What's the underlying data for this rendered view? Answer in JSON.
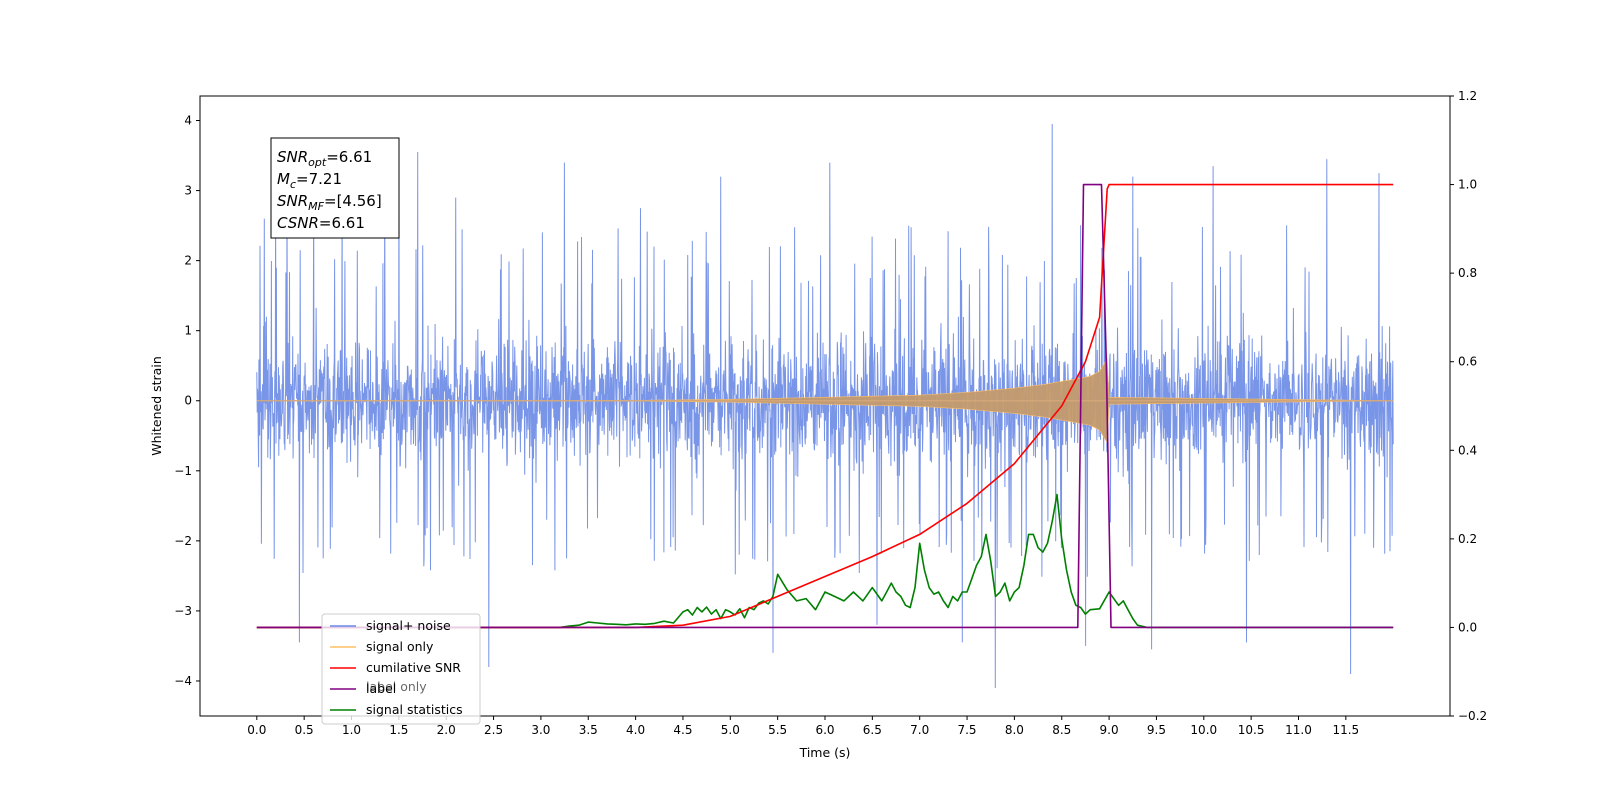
{
  "chart_data": {
    "type": "line",
    "xlabel": "Time (s)",
    "ylabel": "Whitened strain",
    "xlim": [
      -0.6,
      12.6
    ],
    "ylim": [
      -4.5,
      4.35
    ],
    "y2lim": [
      -0.2,
      1.2
    ],
    "x_ticks": [
      0.0,
      0.5,
      1.0,
      1.5,
      2.0,
      2.5,
      3.0,
      3.5,
      4.0,
      4.5,
      5.0,
      5.5,
      6.0,
      6.5,
      7.0,
      7.5,
      8.0,
      8.5,
      9.0,
      9.5,
      10.0,
      10.5,
      11.0,
      11.5
    ],
    "x_tick_labels": [
      "0.0",
      "0.5",
      "1.0",
      "1.5",
      "2.0",
      "2.5",
      "3.0",
      "3.5",
      "4.0",
      "4.5",
      "5.0",
      "5.5",
      "6.0",
      "6.5",
      "7.0",
      "7.5",
      "8.0",
      "8.5",
      "9.0",
      "9.5",
      "10.0",
      "10.5",
      "11.0",
      "11.5"
    ],
    "y_ticks": [
      -4,
      -3,
      -2,
      -1,
      0,
      1,
      2,
      3,
      4
    ],
    "y_tick_labels": [
      "−4",
      "−3",
      "−2",
      "−1",
      "0",
      "1",
      "2",
      "3",
      "4"
    ],
    "y2_ticks": [
      -0.2,
      0.0,
      0.2,
      0.4,
      0.6,
      0.8,
      1.0,
      1.2
    ],
    "y2_tick_labels": [
      "−0.2",
      "0.0",
      "0.2",
      "0.4",
      "0.6",
      "0.8",
      "1.0",
      "1.2"
    ],
    "legend_position": "lower-left",
    "legend": [
      {
        "name": "signal+ noise",
        "color": "#6a8ae6"
      },
      {
        "name": "signal only",
        "color": "#ffbf66"
      },
      {
        "name": "cumilative SNR",
        "color": "#ff0000"
      },
      {
        "name": "label",
        "color": "#800080"
      },
      {
        "name": "signal statistics",
        "color": "#008000"
      }
    ],
    "hidden_legend_text": "label only",
    "series": [
      {
        "name": "cumilative SNR",
        "axis": "right",
        "color": "#ff0000",
        "x": [
          0.0,
          4.0,
          4.5,
          5.0,
          5.5,
          6.0,
          6.5,
          7.0,
          7.5,
          8.0,
          8.5,
          8.75,
          8.9,
          8.98,
          9.0,
          12.0
        ],
        "y": [
          0.0,
          0.0,
          0.005,
          0.025,
          0.07,
          0.115,
          0.16,
          0.21,
          0.28,
          0.37,
          0.5,
          0.6,
          0.7,
          0.99,
          1.0,
          1.0
        ]
      },
      {
        "name": "label",
        "axis": "right",
        "color": "#800080",
        "x": [
          0.0,
          8.67,
          8.73,
          8.92,
          8.97,
          9.02,
          12.0
        ],
        "y": [
          0.0,
          0.0,
          1.0,
          1.0,
          0.6,
          0.0,
          0.0
        ]
      },
      {
        "name": "signal statistics",
        "axis": "right",
        "color": "#008000",
        "x": [
          0.0,
          3.2,
          3.3,
          3.4,
          3.5,
          3.6,
          3.7,
          3.8,
          3.9,
          4.0,
          4.1,
          4.2,
          4.3,
          4.4,
          4.5,
          4.55,
          4.6,
          4.65,
          4.7,
          4.75,
          4.8,
          4.85,
          4.9,
          4.95,
          5.0,
          5.05,
          5.1,
          5.15,
          5.2,
          5.25,
          5.3,
          5.35,
          5.4,
          5.45,
          5.5,
          5.6,
          5.7,
          5.8,
          5.9,
          6.0,
          6.1,
          6.2,
          6.3,
          6.4,
          6.5,
          6.6,
          6.65,
          6.7,
          6.75,
          6.8,
          6.85,
          6.9,
          6.95,
          7.0,
          7.05,
          7.1,
          7.15,
          7.2,
          7.25,
          7.3,
          7.35,
          7.4,
          7.45,
          7.5,
          7.55,
          7.6,
          7.65,
          7.7,
          7.75,
          7.8,
          7.85,
          7.9,
          7.95,
          8.0,
          8.05,
          8.1,
          8.15,
          8.2,
          8.25,
          8.3,
          8.35,
          8.4,
          8.45,
          8.5,
          8.55,
          8.6,
          8.65,
          8.7,
          8.75,
          8.8,
          8.9,
          9.0,
          9.05,
          9.1,
          9.15,
          9.2,
          9.25,
          9.3,
          9.4,
          9.6,
          12.0
        ],
        "y": [
          0.0,
          0.0,
          0.003,
          0.005,
          0.012,
          0.01,
          0.008,
          0.007,
          0.006,
          0.008,
          0.007,
          0.009,
          0.014,
          0.01,
          0.035,
          0.04,
          0.028,
          0.045,
          0.035,
          0.046,
          0.03,
          0.04,
          0.02,
          0.04,
          0.035,
          0.028,
          0.042,
          0.022,
          0.045,
          0.04,
          0.055,
          0.06,
          0.053,
          0.07,
          0.12,
          0.085,
          0.06,
          0.065,
          0.04,
          0.08,
          0.07,
          0.06,
          0.08,
          0.06,
          0.09,
          0.06,
          0.08,
          0.1,
          0.08,
          0.07,
          0.05,
          0.045,
          0.09,
          0.19,
          0.13,
          0.09,
          0.075,
          0.08,
          0.06,
          0.045,
          0.07,
          0.06,
          0.08,
          0.08,
          0.11,
          0.14,
          0.16,
          0.21,
          0.15,
          0.07,
          0.08,
          0.1,
          0.06,
          0.08,
          0.09,
          0.14,
          0.21,
          0.21,
          0.18,
          0.17,
          0.19,
          0.24,
          0.3,
          0.2,
          0.13,
          0.08,
          0.05,
          0.045,
          0.03,
          0.04,
          0.042,
          0.08,
          0.065,
          0.05,
          0.06,
          0.04,
          0.02,
          0.005,
          0.0,
          0.0,
          0.0
        ]
      },
      {
        "name": "signal only",
        "axis": "left",
        "color": "#ffbf66",
        "envelope_x": [
          0.0,
          4.0,
          5.0,
          6.0,
          7.0,
          7.5,
          8.0,
          8.3,
          8.6,
          8.8,
          8.9,
          8.98,
          9.0,
          12.0
        ],
        "envelope_y": [
          0.0,
          0.005,
          0.02,
          0.05,
          0.08,
          0.12,
          0.18,
          0.23,
          0.3,
          0.35,
          0.42,
          0.6,
          0.05,
          0.0
        ]
      },
      {
        "name": "signal+ noise",
        "axis": "left",
        "color": "#6a8ae6",
        "typical_range": [
          -1.9,
          1.9
        ],
        "x_start": 0.0,
        "x_end": 12.0,
        "spike_peaks": [
          {
            "x": 0.02,
            "y": -0.95
          },
          {
            "x": 0.08,
            "y": 2.6
          },
          {
            "x": 0.1,
            "y": 1.2
          },
          {
            "x": 0.2,
            "y": 2.9
          },
          {
            "x": 0.32,
            "y": 3.1
          },
          {
            "x": 0.45,
            "y": -3.45
          },
          {
            "x": 0.6,
            "y": 3.0
          },
          {
            "x": 0.9,
            "y": 3.3
          },
          {
            "x": 1.35,
            "y": 3.0
          },
          {
            "x": 1.5,
            "y": 3.45
          },
          {
            "x": 1.7,
            "y": 3.55
          },
          {
            "x": 2.1,
            "y": 2.9
          },
          {
            "x": 2.45,
            "y": -3.8
          },
          {
            "x": 3.25,
            "y": 3.4
          },
          {
            "x": 4.05,
            "y": 2.75
          },
          {
            "x": 4.9,
            "y": 3.2
          },
          {
            "x": 5.45,
            "y": -3.6
          },
          {
            "x": 6.05,
            "y": 3.4
          },
          {
            "x": 6.55,
            "y": -3.2
          },
          {
            "x": 7.45,
            "y": -3.45
          },
          {
            "x": 7.8,
            "y": -4.1
          },
          {
            "x": 8.4,
            "y": 3.95
          },
          {
            "x": 8.75,
            "y": -3.5
          },
          {
            "x": 9.25,
            "y": 3.2
          },
          {
            "x": 9.45,
            "y": -3.55
          },
          {
            "x": 10.1,
            "y": 3.35
          },
          {
            "x": 10.45,
            "y": -3.45
          },
          {
            "x": 11.3,
            "y": 3.45
          },
          {
            "x": 11.55,
            "y": -3.9
          },
          {
            "x": 11.85,
            "y": 3.25
          }
        ]
      }
    ],
    "annotations": [
      {
        "base": "SNR",
        "sub": "opt",
        "rest": "=6.61"
      },
      {
        "base": "M",
        "sub": "c",
        "rest": "=7.21"
      },
      {
        "base": "SNR",
        "sub": "MF",
        "rest": "=[4.56]"
      },
      {
        "base": "CSNR",
        "sub": "",
        "rest": "=6.61"
      }
    ]
  }
}
